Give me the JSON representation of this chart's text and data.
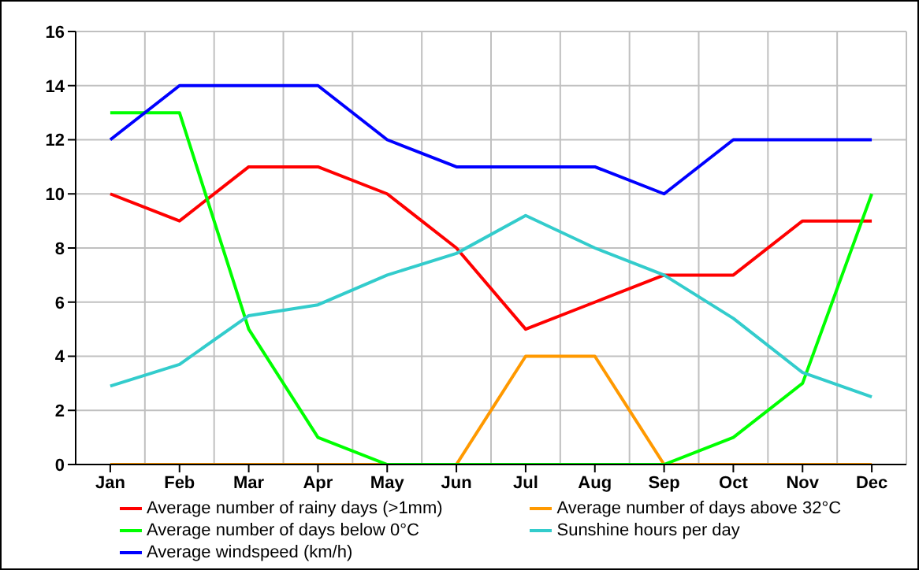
{
  "chart_data": {
    "type": "line",
    "categories": [
      "Jan",
      "Feb",
      "Mar",
      "Apr",
      "May",
      "Jun",
      "Jul",
      "Aug",
      "Sep",
      "Oct",
      "Nov",
      "Dec"
    ],
    "ylim": [
      0,
      16
    ],
    "yticks": [
      0,
      2,
      4,
      6,
      8,
      10,
      12,
      14,
      16
    ],
    "grid": true,
    "legend": "bottom",
    "marker": "none",
    "line_style": "solid",
    "series": [
      {
        "name": "Average number of rainy days (>1mm)",
        "color": "#ff0000",
        "values": [
          10,
          9,
          11,
          11,
          10,
          8,
          5,
          6,
          7,
          7,
          9,
          9
        ]
      },
      {
        "name": "Average number of days above 32°C",
        "color": "#ff9900",
        "values": [
          0,
          0,
          0,
          0,
          0,
          0,
          4,
          4,
          0,
          0,
          0,
          0
        ]
      },
      {
        "name": "Average number of days below 0°C",
        "color": "#00ff00",
        "values": [
          13,
          13,
          5,
          1,
          0,
          0,
          0,
          0,
          0,
          1,
          3,
          10
        ]
      },
      {
        "name": "Sunshine hours per day",
        "color": "#33cccc",
        "values": [
          2.9,
          3.7,
          5.5,
          5.9,
          7,
          7.8,
          9.2,
          8,
          7,
          5.4,
          3.4,
          2.5
        ]
      },
      {
        "name": "Average windspeed (km/h)",
        "color": "#0000ff",
        "values": [
          12,
          14,
          14,
          14,
          12,
          11,
          11,
          11,
          10,
          12,
          12,
          12
        ]
      }
    ]
  }
}
